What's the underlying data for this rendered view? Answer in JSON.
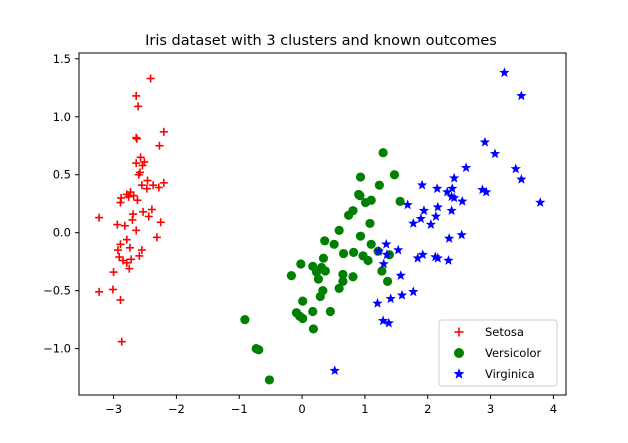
{
  "chart_data": {
    "type": "scatter",
    "title": "Iris dataset with 3 clusters and known outcomes",
    "xlabel": "",
    "ylabel": "",
    "xlim": [
      -3.55,
      4.2
    ],
    "ylim": [
      -1.4,
      1.55
    ],
    "xticks": [
      -3,
      -2,
      -1,
      0,
      1,
      2,
      3,
      4
    ],
    "xtick_labels": [
      "−3",
      "−2",
      "−1",
      "0",
      "1",
      "2",
      "3",
      "4"
    ],
    "yticks": [
      -1.0,
      -0.5,
      0.0,
      0.5,
      1.0,
      1.5
    ],
    "ytick_labels": [
      "−1.0",
      "−0.5",
      "0.0",
      "0.5",
      "1.0",
      "1.5"
    ],
    "grid": false,
    "legend_position": "lower-right",
    "series": [
      {
        "name": "Setosa",
        "color": "#ff0000",
        "marker": "plus",
        "points": [
          [
            -2.41,
            1.33
          ],
          [
            -2.64,
            1.18
          ],
          [
            -2.61,
            1.09
          ],
          [
            -2.2,
            0.87
          ],
          [
            -2.64,
            0.82
          ],
          [
            -2.63,
            0.81
          ],
          [
            -2.27,
            0.75
          ],
          [
            -2.57,
            0.65
          ],
          [
            -2.51,
            0.61
          ],
          [
            -2.64,
            0.6
          ],
          [
            -2.54,
            0.58
          ],
          [
            -2.58,
            0.52
          ],
          [
            -2.6,
            0.5
          ],
          [
            -2.46,
            0.45
          ],
          [
            -2.2,
            0.43
          ],
          [
            -2.55,
            0.41
          ],
          [
            -2.37,
            0.41
          ],
          [
            -2.28,
            0.39
          ],
          [
            -2.47,
            0.38
          ],
          [
            -2.73,
            0.35
          ],
          [
            -2.79,
            0.33
          ],
          [
            -2.68,
            0.32
          ],
          [
            -2.76,
            0.31
          ],
          [
            -2.88,
            0.3
          ],
          [
            -2.62,
            0.28
          ],
          [
            -2.89,
            0.26
          ],
          [
            -2.39,
            0.2
          ],
          [
            -2.53,
            0.18
          ],
          [
            -2.69,
            0.16
          ],
          [
            -2.44,
            0.14
          ],
          [
            -3.23,
            0.13
          ],
          [
            -2.7,
            0.11
          ],
          [
            -2.25,
            0.09
          ],
          [
            -2.94,
            0.07
          ],
          [
            -2.82,
            0.06
          ],
          [
            -2.64,
            0.02
          ],
          [
            -2.31,
            -0.04
          ],
          [
            -2.79,
            -0.06
          ],
          [
            -2.89,
            -0.1
          ],
          [
            -2.74,
            -0.13
          ],
          [
            -2.55,
            -0.15
          ],
          [
            -2.93,
            -0.15
          ],
          [
            -2.59,
            -0.2
          ],
          [
            -2.91,
            -0.21
          ],
          [
            -2.72,
            -0.23
          ],
          [
            -2.85,
            -0.24
          ],
          [
            -2.79,
            -0.26
          ],
          [
            -2.75,
            -0.31
          ],
          [
            -3.0,
            -0.34
          ],
          [
            -3.01,
            -0.49
          ],
          [
            -3.23,
            -0.51
          ],
          [
            -2.89,
            -0.58
          ],
          [
            -2.87,
            -0.94
          ]
        ]
      },
      {
        "name": "Versicolor",
        "color": "#008000",
        "marker": "circle",
        "points": [
          [
            1.29,
            0.69
          ],
          [
            1.47,
            0.5
          ],
          [
            0.93,
            0.48
          ],
          [
            1.23,
            0.41
          ],
          [
            0.9,
            0.33
          ],
          [
            0.92,
            0.32
          ],
          [
            1.1,
            0.28
          ],
          [
            1.56,
            0.27
          ],
          [
            1.01,
            0.26
          ],
          [
            0.81,
            0.19
          ],
          [
            0.74,
            0.15
          ],
          [
            1.08,
            0.08
          ],
          [
            0.59,
            0.02
          ],
          [
            0.93,
            -0.03
          ],
          [
            0.36,
            -0.07
          ],
          [
            0.51,
            -0.1
          ],
          [
            1.1,
            -0.1
          ],
          [
            1.21,
            -0.16
          ],
          [
            0.82,
            -0.17
          ],
          [
            0.66,
            -0.18
          ],
          [
            0.97,
            -0.2
          ],
          [
            1.39,
            -0.19
          ],
          [
            1.05,
            -0.24
          ],
          [
            -0.02,
            -0.27
          ],
          [
            0.17,
            -0.29
          ],
          [
            0.31,
            -0.3
          ],
          [
            0.34,
            -0.22
          ],
          [
            0.23,
            -0.33
          ],
          [
            0.23,
            -0.34
          ],
          [
            1.27,
            -0.33
          ],
          [
            0.37,
            -0.33
          ],
          [
            0.65,
            -0.36
          ],
          [
            0.81,
            -0.38
          ],
          [
            -0.17,
            -0.37
          ],
          [
            0.26,
            -0.4
          ],
          [
            0.65,
            -0.42
          ],
          [
            1.36,
            -0.42
          ],
          [
            0.59,
            -0.48
          ],
          [
            0.33,
            -0.5
          ],
          [
            0.01,
            -0.59
          ],
          [
            0.29,
            -0.55
          ],
          [
            0.45,
            -0.68
          ],
          [
            0.17,
            -0.68
          ],
          [
            -0.09,
            -0.69
          ],
          [
            -0.04,
            -0.72
          ],
          [
            0.01,
            -0.74
          ],
          [
            0.18,
            -0.83
          ],
          [
            -0.91,
            -0.75
          ],
          [
            -0.73,
            -1.0
          ],
          [
            -0.69,
            -1.01
          ],
          [
            -0.52,
            -1.27
          ]
        ]
      },
      {
        "name": "Virginica",
        "color": "#0000ff",
        "marker": "star",
        "points": [
          [
            3.22,
            1.38
          ],
          [
            3.49,
            1.18
          ],
          [
            2.91,
            0.78
          ],
          [
            3.07,
            0.68
          ],
          [
            2.61,
            0.56
          ],
          [
            3.4,
            0.55
          ],
          [
            2.42,
            0.47
          ],
          [
            3.49,
            0.46
          ],
          [
            2.39,
            0.38
          ],
          [
            1.91,
            0.41
          ],
          [
            2.15,
            0.38
          ],
          [
            2.31,
            0.35
          ],
          [
            2.87,
            0.37
          ],
          [
            2.93,
            0.35
          ],
          [
            2.38,
            0.31
          ],
          [
            2.42,
            0.3
          ],
          [
            2.55,
            0.27
          ],
          [
            3.79,
            0.26
          ],
          [
            1.68,
            0.24
          ],
          [
            2.16,
            0.22
          ],
          [
            1.94,
            0.19
          ],
          [
            2.38,
            0.19
          ],
          [
            2.13,
            0.14
          ],
          [
            1.89,
            0.12
          ],
          [
            1.77,
            0.08
          ],
          [
            2.05,
            0.07
          ],
          [
            2.54,
            -0.02
          ],
          [
            2.34,
            -0.05
          ],
          [
            1.34,
            -0.1
          ],
          [
            1.53,
            -0.15
          ],
          [
            1.22,
            -0.16
          ],
          [
            1.35,
            -0.19
          ],
          [
            1.92,
            -0.19
          ],
          [
            2.12,
            -0.21
          ],
          [
            1.84,
            -0.22
          ],
          [
            2.16,
            -0.22
          ],
          [
            2.33,
            -0.24
          ],
          [
            1.3,
            -0.27
          ],
          [
            1.57,
            -0.37
          ],
          [
            1.77,
            -0.51
          ],
          [
            1.59,
            -0.54
          ],
          [
            1.41,
            -0.57
          ],
          [
            1.2,
            -0.61
          ],
          [
            1.29,
            -0.76
          ],
          [
            1.38,
            -0.78
          ],
          [
            0.52,
            -1.19
          ]
        ]
      }
    ]
  }
}
